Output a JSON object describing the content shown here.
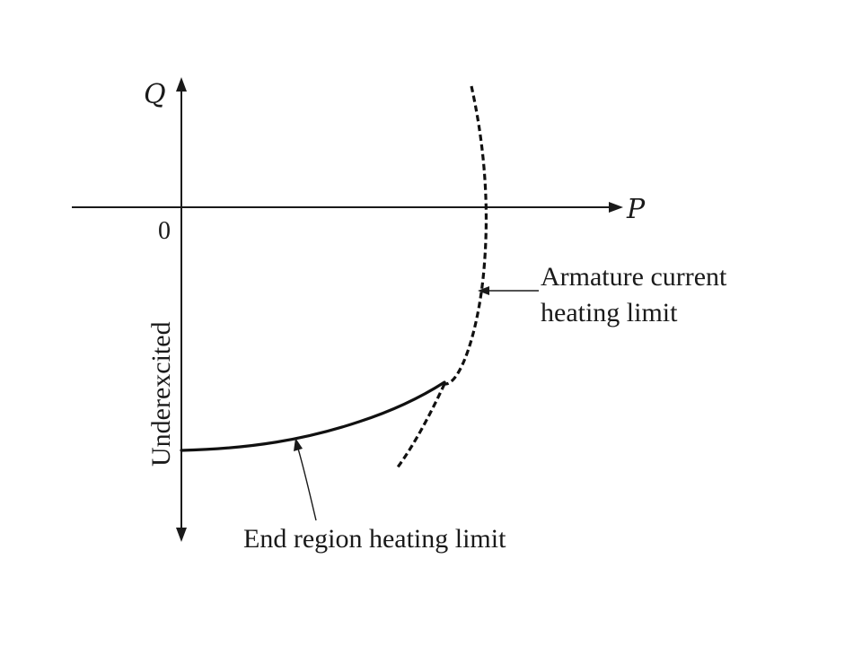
{
  "axes": {
    "q_label": "Q",
    "p_label": "P",
    "origin_label": "0",
    "underexcited_label": "Underexcited"
  },
  "labels": {
    "armature_line1": "Armature current",
    "armature_line2": "heating limit",
    "end_region": "End region heating limit"
  },
  "colors": {
    "ink": "#1a1a1a",
    "background": "#ffffff"
  }
}
